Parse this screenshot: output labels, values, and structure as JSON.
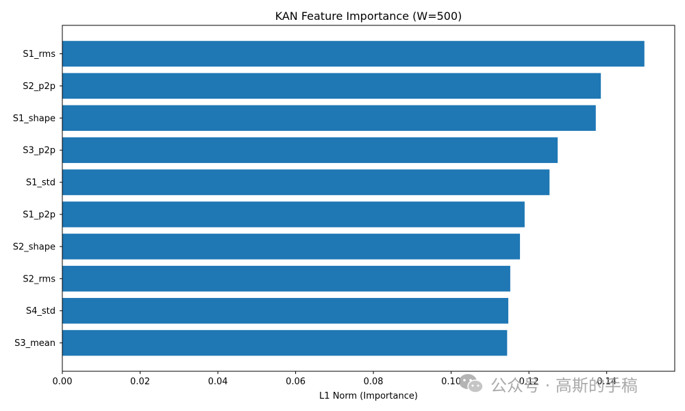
{
  "chart_data": {
    "type": "bar",
    "orientation": "horizontal",
    "title": "KAN Feature Importance (W=500)",
    "xlabel": "L1 Norm (Importance)",
    "ylabel": "",
    "categories": [
      "S1_rms",
      "S2_p2p",
      "S1_shape",
      "S3_p2p",
      "S1_std",
      "S1_p2p",
      "S2_shape",
      "S2_rms",
      "S4_std",
      "S3_mean"
    ],
    "values": [
      0.1497,
      0.1385,
      0.1372,
      0.1274,
      0.1253,
      0.1189,
      0.1177,
      0.1152,
      0.1147,
      0.1144
    ],
    "xlim": [
      0,
      0.1575
    ],
    "xticks": [
      0,
      0.02,
      0.04,
      0.06,
      0.08,
      0.1,
      0.12,
      0.14
    ],
    "xtick_labels": [
      "0.00",
      "0.02",
      "0.04",
      "0.06",
      "0.08",
      "0.10",
      "0.12",
      "0.14"
    ],
    "bar_color": "#1f77b4",
    "grid": false,
    "legend": "none"
  },
  "watermark": {
    "icon": "wechat-icon",
    "text": "公众号 · 高斯的手稿"
  }
}
